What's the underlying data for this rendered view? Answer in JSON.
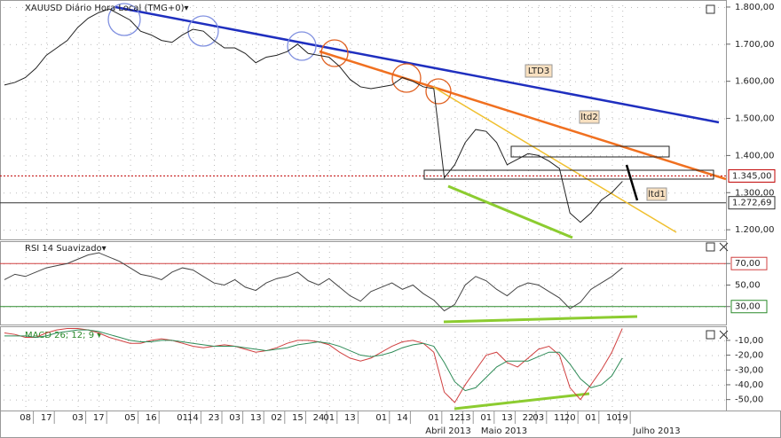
{
  "chart_data": [
    {
      "type": "line",
      "title": "XAUUSD Diário Hora Local (TMG+0)▾",
      "categories": [
        null,
        null,
        "08",
        null,
        "17",
        null,
        null,
        "03",
        null,
        "17",
        null,
        null,
        "05",
        null,
        "16",
        null,
        null,
        "01",
        "14",
        null,
        "23",
        null,
        "03",
        null,
        "13",
        null,
        "02",
        null,
        "15",
        null,
        "24",
        "01",
        null,
        "13",
        null,
        null,
        "01",
        null,
        "14",
        null,
        null,
        "01",
        null,
        "12",
        "13",
        null,
        "01",
        null,
        "13",
        null,
        "22",
        "03",
        null,
        "11",
        "20",
        null,
        "01",
        null,
        "10",
        "19"
      ],
      "periods": [
        "Abril 2013",
        "Maio 2013",
        "Julho 2013"
      ],
      "values": [
        1590,
        1597,
        1610,
        1635,
        1670,
        1690,
        1710,
        1745,
        1770,
        1785,
        1795,
        1780,
        1765,
        1735,
        1725,
        1710,
        1705,
        1725,
        1740,
        1735,
        1710,
        1690,
        1690,
        1675,
        1650,
        1665,
        1670,
        1680,
        1700,
        1675,
        1670,
        1665,
        1640,
        1605,
        1585,
        1580,
        1585,
        1590,
        1610,
        1600,
        1585,
        1580,
        1340,
        1375,
        1435,
        1470,
        1465,
        1435,
        1375,
        1390,
        1405,
        1400,
        1385,
        1365,
        1245,
        1220,
        1245,
        1280,
        1300,
        1330
      ],
      "color": "#222222",
      "ylim": [
        1174,
        1819
      ],
      "yticks": [
        {
          "value": 1800,
          "label": "1.800,00"
        },
        {
          "value": 1700,
          "label": "1.700,00"
        },
        {
          "value": 1600,
          "label": "1.600,00"
        },
        {
          "value": 1500,
          "label": "1.500,00"
        },
        {
          "value": 1400,
          "label": "1.400,00"
        },
        {
          "value": 1300,
          "label": "1.300,00"
        },
        {
          "value": 1200,
          "label": "1.200,00"
        }
      ],
      "levels": [
        {
          "value": 1345,
          "label": "1.345,00",
          "color": "#c00000"
        },
        {
          "value": 1272.69,
          "label": "1.272,69",
          "color": "#333333"
        }
      ],
      "annotations": [
        "LTD3",
        "ltd2",
        "ltd1"
      ]
    },
    {
      "type": "line",
      "title": "RSI 14 Suavizado▾",
      "values": [
        55,
        60,
        58,
        62,
        66,
        68,
        70,
        74,
        78,
        80,
        76,
        72,
        66,
        60,
        58,
        55,
        62,
        66,
        64,
        58,
        52,
        50,
        55,
        48,
        45,
        52,
        56,
        58,
        62,
        54,
        50,
        56,
        48,
        40,
        35,
        44,
        48,
        52,
        46,
        50,
        42,
        36,
        26,
        32,
        50,
        58,
        54,
        46,
        40,
        48,
        52,
        50,
        44,
        38,
        28,
        34,
        46,
        52,
        58,
        66
      ],
      "color": "#444444",
      "ylim": [
        13.3,
        90.8
      ],
      "yticks": [
        {
          "value": 70,
          "label": "70,00"
        },
        {
          "value": 50,
          "label": "50,00"
        },
        {
          "value": 30,
          "label": "30,00"
        }
      ],
      "levels": [
        {
          "value": 70,
          "color": "#d04040"
        },
        {
          "value": 30,
          "color": "#2a8a2a"
        }
      ]
    },
    {
      "type": "line",
      "title": "MACD 26; 12; 9 ▾",
      "series": [
        {
          "color": "#d04040",
          "values": [
            -5,
            -6,
            -8,
            -8,
            -5,
            -3,
            -2,
            -2,
            -3,
            -5,
            -8,
            -10,
            -12,
            -12,
            -10,
            -9,
            -10,
            -12,
            -14,
            -15,
            -14,
            -13,
            -14,
            -16,
            -18,
            -17,
            -15,
            -12,
            -10,
            -10,
            -11,
            -13,
            -18,
            -22,
            -24,
            -22,
            -18,
            -14,
            -11,
            -10,
            -12,
            -18,
            -45,
            -52,
            -40,
            -30,
            -20,
            -18,
            -25,
            -28,
            -22,
            -16,
            -14,
            -20,
            -42,
            -50,
            -40,
            -30,
            -18,
            -2
          ]
        },
        {
          "color": "#2e8b57",
          "values": [
            -7,
            -7,
            -7,
            -8,
            -7,
            -5,
            -4,
            -3,
            -3,
            -4,
            -6,
            -8,
            -10,
            -11,
            -11,
            -10,
            -10,
            -11,
            -12,
            -13,
            -14,
            -14,
            -14,
            -15,
            -16,
            -17,
            -16,
            -15,
            -13,
            -12,
            -11,
            -12,
            -14,
            -17,
            -20,
            -21,
            -20,
            -18,
            -15,
            -13,
            -12,
            -14,
            -25,
            -38,
            -44,
            -42,
            -35,
            -28,
            -24,
            -24,
            -24,
            -21,
            -18,
            -18,
            -26,
            -36,
            -42,
            -40,
            -34,
            -22
          ]
        }
      ],
      "ylim": [
        -57.4,
        -0.5
      ],
      "yticks": [
        {
          "value": -10,
          "label": "-10,00"
        },
        {
          "value": -20,
          "label": "-20,00"
        },
        {
          "value": -30,
          "label": "-30,00"
        },
        {
          "value": -40,
          "label": "-40,00"
        },
        {
          "value": -50,
          "label": "-50,00"
        }
      ]
    }
  ]
}
